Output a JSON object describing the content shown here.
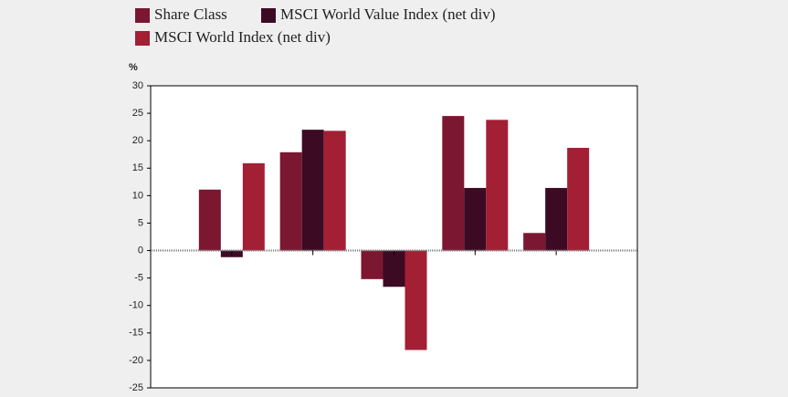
{
  "chart_data": {
    "type": "bar",
    "y_label": "%",
    "categories": [
      null,
      null,
      null,
      null,
      null
    ],
    "series": [
      {
        "name": "Share Class",
        "color": "#7b1730",
        "values": [
          11.1,
          17.9,
          -5.2,
          24.5,
          3.2
        ]
      },
      {
        "name": "MSCI World Value Index (net div)",
        "color": "#3d0a24",
        "values": [
          -1.2,
          22.0,
          -6.6,
          11.4,
          11.4
        ]
      },
      {
        "name": "MSCI World Index (net div)",
        "color": "#a31f34",
        "values": [
          15.9,
          21.8,
          -18.1,
          23.8,
          18.7
        ]
      }
    ],
    "ylim": [
      -25,
      30
    ],
    "yticks": [
      -25,
      -20,
      -15,
      -10,
      -5,
      0,
      5,
      10,
      15,
      20,
      25,
      30
    ],
    "grid": false,
    "legend": "top"
  }
}
